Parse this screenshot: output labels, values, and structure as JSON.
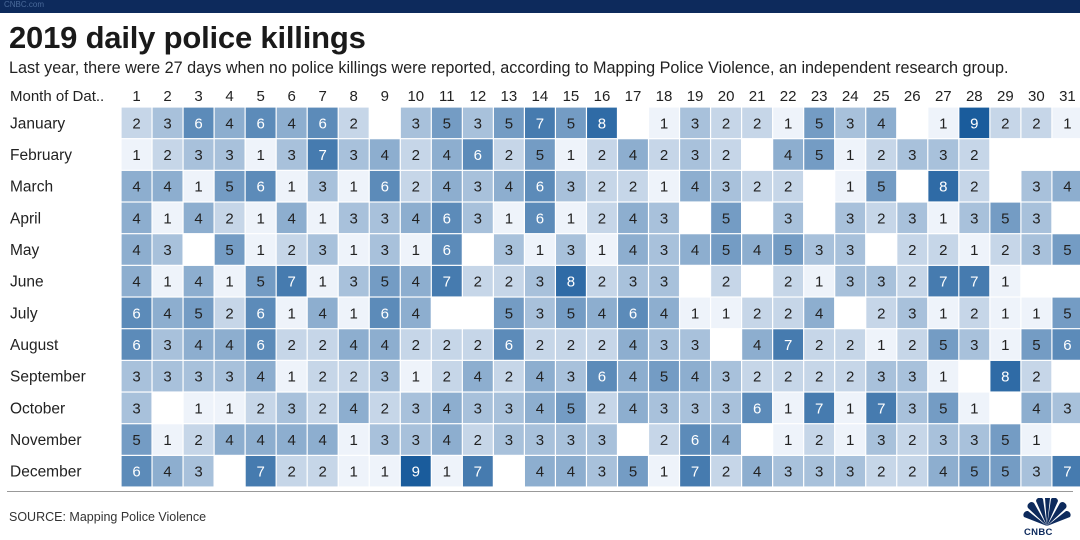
{
  "header": {
    "bar_label": "CNBC.com"
  },
  "chart_data": {
    "type": "heatmap",
    "title": "2019 daily police killings",
    "subtitle": "Last year, there were 27 days when no police killings were reported, according to Mapping Police Violence, an independent research group.",
    "row_header": "Month of Dat..",
    "days": [
      1,
      2,
      3,
      4,
      5,
      6,
      7,
      8,
      9,
      10,
      11,
      12,
      13,
      14,
      15,
      16,
      17,
      18,
      19,
      20,
      21,
      22,
      23,
      24,
      25,
      26,
      27,
      28,
      29,
      30,
      31
    ],
    "months": [
      "January",
      "February",
      "March",
      "April",
      "May",
      "June",
      "July",
      "August",
      "September",
      "October",
      "November",
      "December"
    ],
    "values": [
      [
        2,
        3,
        6,
        4,
        6,
        4,
        6,
        2,
        null,
        3,
        5,
        3,
        5,
        7,
        5,
        8,
        null,
        1,
        3,
        2,
        2,
        1,
        5,
        3,
        4,
        null,
        1,
        9,
        2,
        2,
        1
      ],
      [
        1,
        2,
        3,
        3,
        1,
        3,
        7,
        3,
        4,
        2,
        4,
        6,
        2,
        5,
        1,
        2,
        4,
        2,
        3,
        2,
        null,
        4,
        5,
        1,
        2,
        3,
        3,
        2
      ],
      [
        4,
        4,
        1,
        5,
        6,
        1,
        3,
        1,
        6,
        2,
        4,
        3,
        4,
        6,
        3,
        2,
        2,
        1,
        4,
        3,
        2,
        2,
        null,
        1,
        5,
        null,
        8,
        2,
        null,
        3,
        4
      ],
      [
        4,
        1,
        4,
        2,
        1,
        4,
        1,
        3,
        3,
        4,
        6,
        3,
        1,
        6,
        1,
        2,
        4,
        3,
        null,
        5,
        null,
        3,
        null,
        3,
        2,
        3,
        1,
        3,
        5,
        3
      ],
      [
        4,
        3,
        null,
        5,
        1,
        2,
        3,
        1,
        3,
        1,
        6,
        null,
        3,
        1,
        3,
        1,
        4,
        3,
        4,
        5,
        4,
        5,
        3,
        3,
        null,
        2,
        2,
        1,
        2,
        3,
        5
      ],
      [
        4,
        1,
        4,
        1,
        5,
        7,
        1,
        3,
        5,
        4,
        7,
        2,
        2,
        3,
        8,
        2,
        3,
        3,
        null,
        2,
        null,
        2,
        1,
        3,
        3,
        2,
        7,
        7,
        1,
        null
      ],
      [
        6,
        4,
        5,
        2,
        6,
        1,
        4,
        1,
        6,
        4,
        null,
        null,
        5,
        3,
        5,
        4,
        6,
        4,
        1,
        1,
        2,
        2,
        4,
        null,
        2,
        3,
        1,
        2,
        1,
        1,
        5
      ],
      [
        6,
        3,
        4,
        4,
        6,
        2,
        2,
        4,
        4,
        2,
        2,
        2,
        6,
        2,
        2,
        2,
        4,
        3,
        3,
        null,
        4,
        7,
        2,
        2,
        1,
        2,
        5,
        3,
        1,
        5,
        6
      ],
      [
        3,
        3,
        3,
        3,
        4,
        1,
        2,
        2,
        3,
        1,
        2,
        4,
        2,
        4,
        3,
        6,
        4,
        5,
        4,
        3,
        2,
        2,
        2,
        2,
        3,
        3,
        1,
        null,
        8,
        2
      ],
      [
        3,
        null,
        1,
        1,
        2,
        3,
        2,
        4,
        2,
        3,
        4,
        3,
        3,
        4,
        5,
        2,
        4,
        3,
        3,
        3,
        6,
        1,
        7,
        1,
        7,
        3,
        5,
        1,
        null,
        4,
        3
      ],
      [
        5,
        1,
        2,
        4,
        4,
        4,
        4,
        1,
        3,
        3,
        4,
        2,
        3,
        3,
        3,
        3,
        null,
        2,
        6,
        4,
        null,
        1,
        2,
        1,
        3,
        2,
        3,
        3,
        5,
        1
      ],
      [
        6,
        4,
        3,
        null,
        7,
        2,
        2,
        1,
        1,
        9,
        1,
        7,
        null,
        4,
        4,
        3,
        5,
        1,
        7,
        2,
        4,
        3,
        3,
        3,
        2,
        2,
        4,
        5,
        5,
        3,
        7
      ]
    ],
    "value_range": [
      1,
      9
    ],
    "colors": {
      "low": "#eef3fa",
      "high": "#1a5c9c",
      "text_dark": "#222222",
      "text_light": "#ffffff"
    }
  },
  "footer": {
    "source": "SOURCE: Mapping Police Violence",
    "logo_text": "CNBC"
  }
}
